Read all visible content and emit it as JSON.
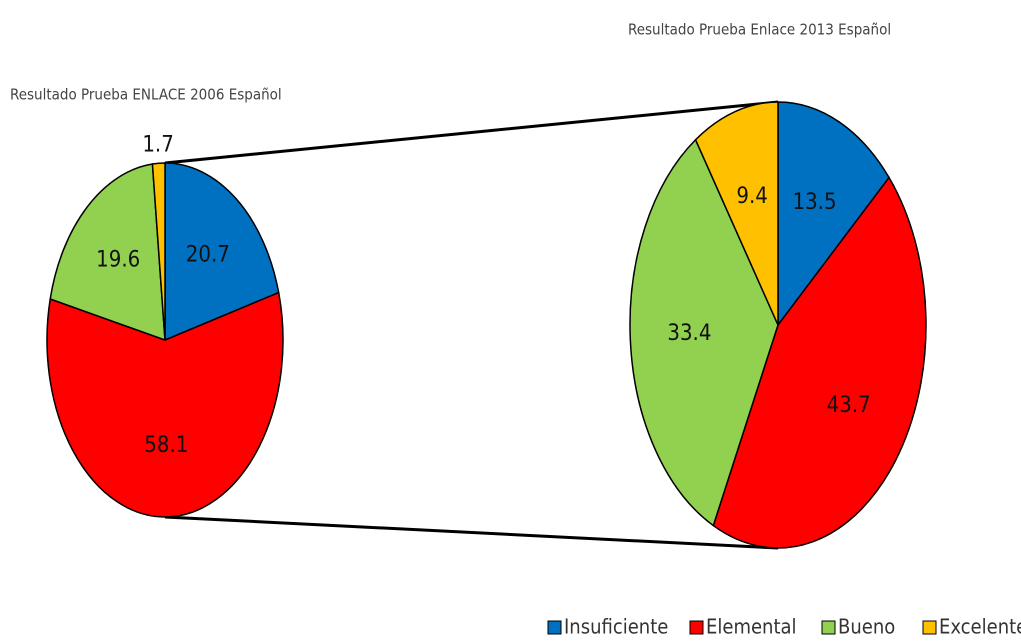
{
  "chart_data": [
    {
      "type": "pie",
      "title": "Resultado Prueba ENLACE 2006 Español",
      "categories": [
        "Insuficiente",
        "Elemental",
        "Bueno",
        "Excelente"
      ],
      "values": [
        20.7,
        58.1,
        19.6,
        1.7
      ],
      "colors": [
        "#0070c0",
        "#ff0000",
        "#92d050",
        "#ffc000"
      ],
      "legend": "bottom-right"
    },
    {
      "type": "pie",
      "title": "Resultado Prueba Enlace 2013 Español",
      "categories": [
        "Insuficiente",
        "Elemental",
        "Bueno",
        "Excelente"
      ],
      "values": [
        13.5,
        43.7,
        33.4,
        9.4
      ],
      "colors": [
        "#0070c0",
        "#ff0000",
        "#92d050",
        "#ffc000"
      ],
      "legend": "bottom-right"
    }
  ]
}
